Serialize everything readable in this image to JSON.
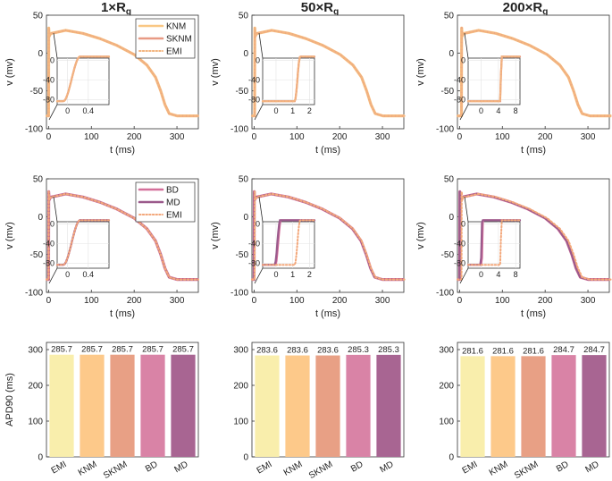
{
  "figure": {
    "column_titles": [
      "1×R",
      "50×R",
      "200×R"
    ],
    "column_title_subscript": "g",
    "ylabel_voltage": "v (mv)",
    "xlabel_time": "t (ms)",
    "ylabel_apd": "APD90 (ms)"
  },
  "chart_data": [
    {
      "type": "line",
      "panel": "row1-col1",
      "title": "1×Rg",
      "xlabel": "t (ms)",
      "ylabel": "v (mv)",
      "xlim": [
        -5,
        350
      ],
      "ylim": [
        -100,
        50
      ],
      "xticks": [
        0,
        100,
        200,
        300
      ],
      "yticks": [
        -100,
        -50,
        0,
        50
      ],
      "legend": {
        "position": "top-right",
        "entries": [
          "KNM",
          "SKNM",
          "EMI"
        ]
      },
      "series": [
        {
          "name": "KNM",
          "color": "#f9c784",
          "style": "solid",
          "upstroke_ms": 0.0
        },
        {
          "name": "SKNM",
          "color": "#e89a84",
          "style": "solid",
          "upstroke_ms": 0.0
        },
        {
          "name": "EMI",
          "color": "#f3b57f",
          "style": "dotted",
          "upstroke_ms": 0.0
        }
      ],
      "inset": {
        "xlim": [
          -0.2,
          0.8
        ],
        "ylim": [
          -90,
          5
        ],
        "xticks": [
          0,
          0.4
        ],
        "yticks": [
          -80,
          -40,
          0
        ]
      }
    },
    {
      "type": "line",
      "panel": "row1-col2",
      "title": "50×Rg",
      "xlabel": "t (ms)",
      "ylabel": "v (mv)",
      "xlim": [
        -5,
        350
      ],
      "ylim": [
        -100,
        50
      ],
      "xticks": [
        0,
        100,
        200,
        300
      ],
      "yticks": [
        -100,
        -50,
        0,
        50
      ],
      "series": [
        {
          "name": "KNM",
          "color": "#f9c784",
          "style": "solid",
          "upstroke_ms": 1.2
        },
        {
          "name": "SKNM",
          "color": "#e89a84",
          "style": "solid",
          "upstroke_ms": 1.2
        },
        {
          "name": "EMI",
          "color": "#f3b57f",
          "style": "dotted",
          "upstroke_ms": 1.2
        }
      ],
      "inset": {
        "xlim": [
          -0.8,
          2.3
        ],
        "ylim": [
          -90,
          5
        ],
        "xticks": [
          0,
          1,
          2
        ],
        "yticks": [
          -80,
          -40,
          0
        ]
      }
    },
    {
      "type": "line",
      "panel": "row1-col3",
      "title": "200×Rg",
      "xlabel": "t (ms)",
      "ylabel": "v (mv)",
      "xlim": [
        -5,
        350
      ],
      "ylim": [
        -100,
        50
      ],
      "xticks": [
        0,
        100,
        200,
        300
      ],
      "yticks": [
        -100,
        -50,
        0,
        50
      ],
      "series": [
        {
          "name": "KNM",
          "color": "#f9c784",
          "style": "solid",
          "upstroke_ms": 4.5
        },
        {
          "name": "SKNM",
          "color": "#e89a84",
          "style": "solid",
          "upstroke_ms": 4.5
        },
        {
          "name": "EMI",
          "color": "#f3b57f",
          "style": "dotted",
          "upstroke_ms": 4.5
        }
      ],
      "inset": {
        "xlim": [
          -3,
          9
        ],
        "ylim": [
          -90,
          5
        ],
        "xticks": [
          0,
          4,
          8
        ],
        "yticks": [
          -80,
          -40,
          0
        ]
      }
    },
    {
      "type": "line",
      "panel": "row2-col1",
      "xlabel": "t (ms)",
      "ylabel": "v (mv)",
      "xlim": [
        -5,
        350
      ],
      "ylim": [
        -100,
        50
      ],
      "xticks": [
        0,
        100,
        200,
        300
      ],
      "yticks": [
        -100,
        -50,
        0,
        50
      ],
      "legend": {
        "position": "top-right",
        "entries": [
          "BD",
          "MD",
          "EMI"
        ]
      },
      "series": [
        {
          "name": "BD",
          "color": "#d46f9a",
          "style": "solid",
          "upstroke_ms": 0.0
        },
        {
          "name": "MD",
          "color": "#9b5a8c",
          "style": "solid",
          "upstroke_ms": 0.0
        },
        {
          "name": "EMI",
          "color": "#f3a77a",
          "style": "dotted",
          "upstroke_ms": 0.0
        }
      ],
      "inset": {
        "xlim": [
          -0.2,
          0.8
        ],
        "ylim": [
          -90,
          5
        ],
        "xticks": [
          0,
          0.4
        ],
        "yticks": [
          -80,
          -40,
          0
        ]
      }
    },
    {
      "type": "line",
      "panel": "row2-col2",
      "xlabel": "t (ms)",
      "ylabel": "v (mv)",
      "xlim": [
        -5,
        350
      ],
      "ylim": [
        -100,
        50
      ],
      "xticks": [
        0,
        100,
        200,
        300
      ],
      "yticks": [
        -100,
        -50,
        0,
        50
      ],
      "series": [
        {
          "name": "BD",
          "color": "#d46f9a",
          "style": "solid",
          "upstroke_ms": 0.05
        },
        {
          "name": "MD",
          "color": "#9b5a8c",
          "style": "solid",
          "upstroke_ms": 0.0
        },
        {
          "name": "EMI",
          "color": "#f3a77a",
          "style": "dotted",
          "upstroke_ms": 1.2
        }
      ],
      "inset": {
        "xlim": [
          -0.8,
          2.3
        ],
        "ylim": [
          -90,
          5
        ],
        "xticks": [
          0,
          1,
          2
        ],
        "yticks": [
          -80,
          -40,
          0
        ]
      }
    },
    {
      "type": "line",
      "panel": "row2-col3",
      "xlabel": "t (ms)",
      "ylabel": "v (mv)",
      "xlim": [
        -5,
        350
      ],
      "ylim": [
        -100,
        50
      ],
      "xticks": [
        0,
        100,
        200,
        300
      ],
      "yticks": [
        -100,
        -50,
        0,
        50
      ],
      "series": [
        {
          "name": "BD",
          "color": "#d46f9a",
          "style": "solid",
          "upstroke_ms": 0.2
        },
        {
          "name": "MD",
          "color": "#9b5a8c",
          "style": "solid",
          "upstroke_ms": 0.0
        },
        {
          "name": "EMI",
          "color": "#f3a77a",
          "style": "dotted",
          "upstroke_ms": 4.5
        }
      ],
      "inset": {
        "xlim": [
          -3,
          9
        ],
        "ylim": [
          -90,
          5
        ],
        "xticks": [
          0,
          4,
          8
        ],
        "yticks": [
          -80,
          -40,
          0
        ]
      }
    },
    {
      "type": "bar",
      "panel": "row3-col1",
      "ylabel": "APD90 (ms)",
      "categories": [
        "EMI",
        "KNM",
        "SKNM",
        "BD",
        "MD"
      ],
      "values": [
        285.7,
        285.7,
        285.7,
        285.7,
        285.7
      ],
      "labels": [
        "285.7",
        "285.7",
        "285.7",
        "285.7",
        "285.7"
      ],
      "colors": [
        "#f9eeac",
        "#fdc98a",
        "#e8a085",
        "#d983a6",
        "#a86592"
      ],
      "ylim": [
        0,
        320
      ],
      "yticks": [
        0,
        100,
        200,
        300
      ]
    },
    {
      "type": "bar",
      "panel": "row3-col2",
      "categories": [
        "EMI",
        "KNM",
        "SKNM",
        "BD",
        "MD"
      ],
      "values": [
        283.6,
        283.6,
        283.6,
        285.3,
        285.3
      ],
      "labels": [
        "283.6",
        "283.6",
        "283.6",
        "285.3",
        "285.3"
      ],
      "colors": [
        "#f9eeac",
        "#fdc98a",
        "#e8a085",
        "#d983a6",
        "#a86592"
      ],
      "ylim": [
        0,
        320
      ],
      "yticks": [
        0,
        100,
        200,
        300
      ]
    },
    {
      "type": "bar",
      "panel": "row3-col3",
      "categories": [
        "EMI",
        "KNM",
        "SKNM",
        "BD",
        "MD"
      ],
      "values": [
        281.6,
        281.6,
        281.6,
        284.7,
        284.7
      ],
      "labels": [
        "281.6",
        "281.6",
        "281.6",
        "284.7",
        "284.7"
      ],
      "colors": [
        "#f9eeac",
        "#fdc98a",
        "#e8a085",
        "#d983a6",
        "#a86592"
      ],
      "ylim": [
        0,
        320
      ],
      "yticks": [
        0,
        100,
        200,
        300
      ]
    }
  ]
}
